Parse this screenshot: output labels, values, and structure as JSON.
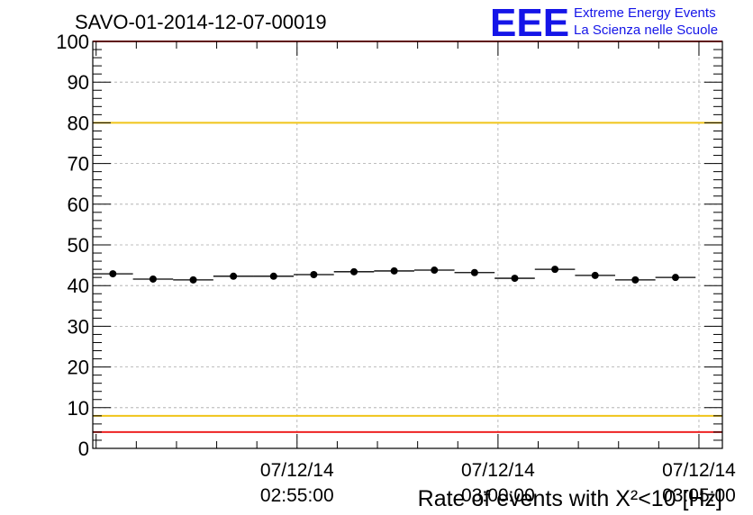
{
  "chart_data": {
    "type": "scatter",
    "title": "SAVO-01-2014-12-07-00019",
    "xlabel": "Rate of events with Χ²<10 [Hz]",
    "ylabel": "",
    "ylim": [
      0,
      100
    ],
    "xlim_seconds": [
      0,
      940
    ],
    "yticks": [
      0,
      10,
      20,
      30,
      40,
      50,
      60,
      70,
      80,
      90,
      100
    ],
    "yticks_labels": [
      "0",
      "10",
      "20",
      "30",
      "40",
      "50",
      "60",
      "70",
      "80",
      "90",
      "100"
    ],
    "xticks": [
      {
        "t": 305,
        "date": "07/12/14",
        "time": "02:55:00"
      },
      {
        "t": 605,
        "date": "07/12/14",
        "time": "03:00:00"
      },
      {
        "t": 905,
        "date": "07/12/14",
        "time": "03:05:00"
      }
    ],
    "grid": true,
    "bin_width_seconds": 60,
    "points": [
      {
        "t": 30,
        "y": 42.9
      },
      {
        "t": 90,
        "y": 41.6
      },
      {
        "t": 150,
        "y": 41.4
      },
      {
        "t": 210,
        "y": 42.3
      },
      {
        "t": 270,
        "y": 42.3
      },
      {
        "t": 330,
        "y": 42.7
      },
      {
        "t": 390,
        "y": 43.4
      },
      {
        "t": 450,
        "y": 43.6
      },
      {
        "t": 510,
        "y": 43.8
      },
      {
        "t": 570,
        "y": 43.2
      },
      {
        "t": 630,
        "y": 41.8
      },
      {
        "t": 690,
        "y": 44.0
      },
      {
        "t": 750,
        "y": 42.5
      },
      {
        "t": 810,
        "y": 41.4
      },
      {
        "t": 870,
        "y": 42.0
      }
    ],
    "reference_lines": [
      {
        "y": 100,
        "color": "#ee2222"
      },
      {
        "y": 80,
        "color": "#f0c419"
      },
      {
        "y": 8,
        "color": "#f0c419"
      },
      {
        "y": 4,
        "color": "#ee2222"
      }
    ]
  },
  "logo": {
    "mark": "EEE",
    "line1": "Extreme Energy Events",
    "line2": "La Scienza nelle Scuole"
  },
  "colors": {
    "logo_blue": "#1515e8",
    "marker": "#000000",
    "grid": "#a8a8a8"
  }
}
